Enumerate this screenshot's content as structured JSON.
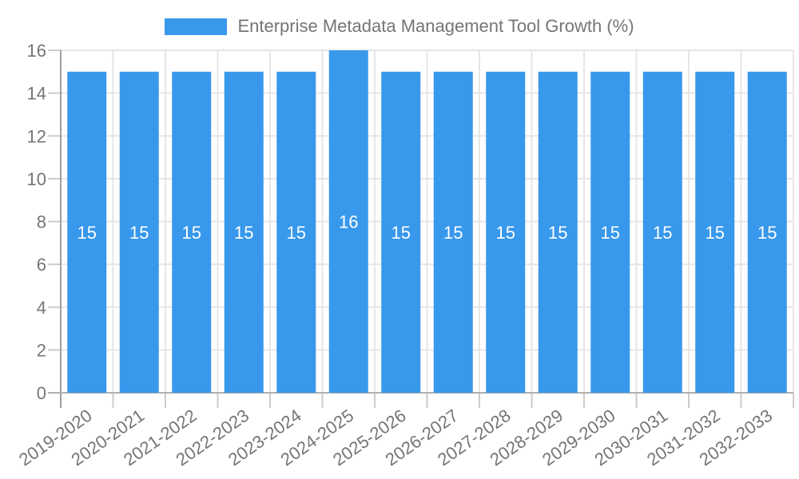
{
  "chart_data": {
    "type": "bar",
    "title": "Enterprise Metadata Management Tool Growth (%)",
    "legend_position": "top",
    "categories": [
      "2019-2020",
      "2020-2021",
      "2021-2022",
      "2022-2023",
      "2023-2024",
      "2024-2025",
      "2025-2026",
      "2026-2027",
      "2027-2028",
      "2028-2029",
      "2029-2030",
      "2030-2031",
      "2031-2032",
      "2032-2033"
    ],
    "values": [
      15,
      15,
      15,
      15,
      15,
      16,
      15,
      15,
      15,
      15,
      15,
      15,
      15,
      15
    ],
    "value_labels": [
      "15",
      "15",
      "15",
      "15",
      "15",
      "16",
      "15",
      "15",
      "15",
      "15",
      "15",
      "15",
      "15",
      "15"
    ],
    "xlabel": "",
    "ylabel": "",
    "ylim": [
      0,
      16
    ],
    "ytick_step": 2,
    "ytick_labels": [
      "0",
      "2",
      "4",
      "6",
      "8",
      "10",
      "12",
      "14",
      "16"
    ],
    "grid": "both",
    "colors": {
      "bar": "#3898ec",
      "value_label": "#ffffff",
      "axis_text": "#757575",
      "gridline": "#e6e6e6",
      "tick": "#cccccc",
      "axis_line": "#b0b0b0",
      "y_axis_line": "#9e9e9e"
    }
  }
}
